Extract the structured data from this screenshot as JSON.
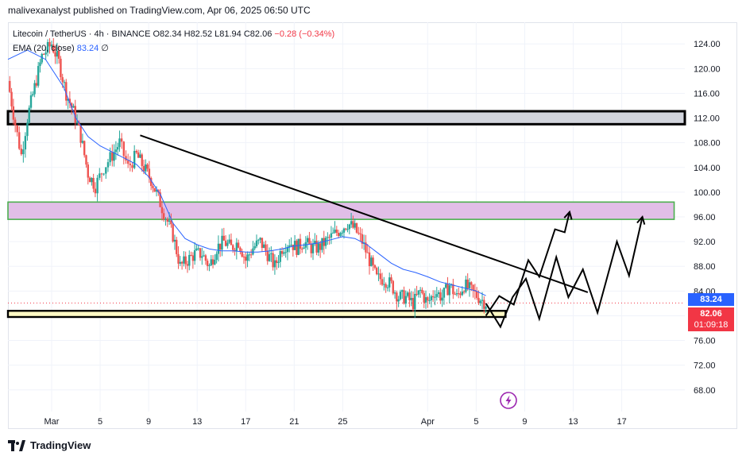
{
  "header": {
    "publisher_text": "malivexanalyst published on TradingView.com, Apr 06, 2025 06:50 UTC"
  },
  "legend": {
    "symbol": "Litecoin / TetherUS · 4h · BINANCE",
    "ohlc_text": "O82.34 H82.52 L81.94 C82.06",
    "change_text": "−0.28 (−0.34%)",
    "ema_name": "EMA (20, close)",
    "ema_value": "83.24",
    "ema_extra": "∅"
  },
  "price_tags": {
    "ema": "83.24",
    "last": "82.06",
    "countdown": "01:09:18"
  },
  "colors": {
    "up": "#26a69a",
    "down": "#ef5350",
    "ema": "#2962ff",
    "resistance_zone": "#e1bee7",
    "resistance_border": "#4caf50",
    "support_zone": "#fff9c4",
    "top_zone": "#d1d4dc"
  },
  "footer": {
    "brand": "TradingView"
  },
  "icons": {
    "flash": "lightning-icon",
    "logo": "tradingview-logo-icon"
  },
  "chart_data": {
    "type": "candlestick",
    "title": "Litecoin / TetherUS · 4h · BINANCE",
    "y_ticks": [
      "124.00",
      "120.00",
      "116.00",
      "112.00",
      "108.00",
      "104.00",
      "100.00",
      "96.00",
      "92.00",
      "88.00",
      "84.00",
      "80.00",
      "76.00",
      "72.00",
      "68.00"
    ],
    "y_tick_values": [
      124,
      120,
      116,
      112,
      108,
      104,
      100,
      96,
      92,
      88,
      84,
      80,
      76,
      72,
      68
    ],
    "x_ticks": [
      "Mar",
      "5",
      "9",
      "13",
      "17",
      "21",
      "25",
      "Apr",
      "5",
      "9",
      "13",
      "17"
    ],
    "x_tick_days": [
      0,
      4,
      8,
      12,
      16,
      20,
      24,
      31,
      35,
      39,
      43,
      47
    ],
    "ylim": [
      64.5,
      127.5
    ],
    "xlim_days": [
      -3.6,
      52.2
    ],
    "zones": [
      {
        "name": "top-resistance",
        "from": 111.0,
        "to": 113.1
      },
      {
        "name": "resistance",
        "from": 95.6,
        "to": 98.4
      },
      {
        "name": "support",
        "from": 79.8,
        "to": 80.8
      }
    ],
    "trendline": {
      "from": [
        7.3,
        109.2
      ],
      "to": [
        44.2,
        83.8
      ]
    },
    "path_a": [
      [
        35.8,
        82.0
      ],
      [
        37.0,
        78.2
      ],
      [
        38.0,
        83.0
      ],
      [
        39.1,
        86.0
      ],
      [
        40.2,
        79.5
      ],
      [
        41.6,
        89.5
      ],
      [
        42.6,
        83.0
      ],
      [
        43.8,
        87.5
      ],
      [
        45.0,
        80.5
      ],
      [
        46.6,
        92.0
      ],
      [
        47.6,
        86.5
      ],
      [
        48.7,
        96.0
      ]
    ],
    "path_b": [
      [
        35.8,
        80.0
      ],
      [
        36.9,
        83.2
      ],
      [
        38.1,
        81.8
      ],
      [
        39.3,
        89.0
      ],
      [
        40.2,
        86.3
      ],
      [
        41.5,
        94.0
      ],
      [
        42.3,
        93.5
      ],
      [
        42.7,
        96.8
      ]
    ],
    "ema_path": [
      [
        -3.6,
        121.5
      ],
      [
        -2.0,
        123.0
      ],
      [
        -0.5,
        121.5
      ],
      [
        1.0,
        117.0
      ],
      [
        2.0,
        112.0
      ],
      [
        3.0,
        109.0
      ],
      [
        4.0,
        107.5
      ],
      [
        5.0,
        106.5
      ],
      [
        6.0,
        105.5
      ],
      [
        7.0,
        104.5
      ],
      [
        8.0,
        102.5
      ],
      [
        9.0,
        99.5
      ],
      [
        10.0,
        95.0
      ],
      [
        11.0,
        92.5
      ],
      [
        12.0,
        91.5
      ],
      [
        13.0,
        90.8
      ],
      [
        14.0,
        90.5
      ],
      [
        15.0,
        90.5
      ],
      [
        16.0,
        90.3
      ],
      [
        17.0,
        90.3
      ],
      [
        18.0,
        90.5
      ],
      [
        19.0,
        90.8
      ],
      [
        20.0,
        91.3
      ],
      [
        21.0,
        91.5
      ],
      [
        22.0,
        91.8
      ],
      [
        23.0,
        92.3
      ],
      [
        24.0,
        92.8
      ],
      [
        25.0,
        92.5
      ],
      [
        26.0,
        91.5
      ],
      [
        27.0,
        90.0
      ],
      [
        28.0,
        88.5
      ],
      [
        29.0,
        87.5
      ],
      [
        30.0,
        87.0
      ],
      [
        31.0,
        86.3
      ],
      [
        32.0,
        85.5
      ],
      [
        33.0,
        85.0
      ],
      [
        34.0,
        84.5
      ],
      [
        35.0,
        84.0
      ],
      [
        35.8,
        83.24
      ]
    ],
    "candles_anchor": [
      [
        -3.6,
        118
      ],
      [
        -3.0,
        111
      ],
      [
        -2.5,
        106
      ],
      [
        -2.0,
        112
      ],
      [
        -1.4,
        117
      ],
      [
        -0.8,
        122
      ],
      [
        0.0,
        124
      ],
      [
        0.6,
        121
      ],
      [
        1.2,
        116
      ],
      [
        1.8,
        113
      ],
      [
        2.4,
        109
      ],
      [
        3.0,
        103
      ],
      [
        3.6,
        101
      ],
      [
        4.3,
        104
      ],
      [
        5.0,
        106
      ],
      [
        5.6,
        108
      ],
      [
        6.3,
        104
      ],
      [
        7.0,
        106
      ],
      [
        7.6,
        104
      ],
      [
        8.2,
        102
      ],
      [
        8.8,
        99
      ],
      [
        9.4,
        96
      ],
      [
        10.0,
        93
      ],
      [
        10.6,
        88
      ],
      [
        11.2,
        89
      ],
      [
        11.8,
        90
      ],
      [
        12.4,
        90
      ],
      [
        13.0,
        88
      ],
      [
        13.6,
        91
      ],
      [
        14.2,
        92
      ],
      [
        14.8,
        91
      ],
      [
        15.4,
        92
      ],
      [
        16.0,
        89
      ],
      [
        16.6,
        91
      ],
      [
        17.2,
        92
      ],
      [
        17.8,
        90
      ],
      [
        18.4,
        88
      ],
      [
        19.0,
        91
      ],
      [
        19.6,
        92
      ],
      [
        20.2,
        91
      ],
      [
        20.8,
        92
      ],
      [
        21.4,
        91
      ],
      [
        22.0,
        91
      ],
      [
        22.6,
        92
      ],
      [
        23.2,
        93
      ],
      [
        23.8,
        94
      ],
      [
        24.4,
        95
      ],
      [
        25.0,
        94
      ],
      [
        25.6,
        92
      ],
      [
        26.2,
        89
      ],
      [
        26.8,
        86
      ],
      [
        27.4,
        86
      ],
      [
        28.0,
        85
      ],
      [
        28.6,
        83
      ],
      [
        29.2,
        83
      ],
      [
        29.8,
        82
      ],
      [
        30.4,
        84
      ],
      [
        31.0,
        82
      ],
      [
        31.6,
        84
      ],
      [
        32.2,
        83
      ],
      [
        32.8,
        85
      ],
      [
        33.4,
        83
      ],
      [
        34.0,
        85
      ],
      [
        34.6,
        84
      ],
      [
        35.2,
        83
      ],
      [
        35.8,
        82.06
      ]
    ]
  }
}
